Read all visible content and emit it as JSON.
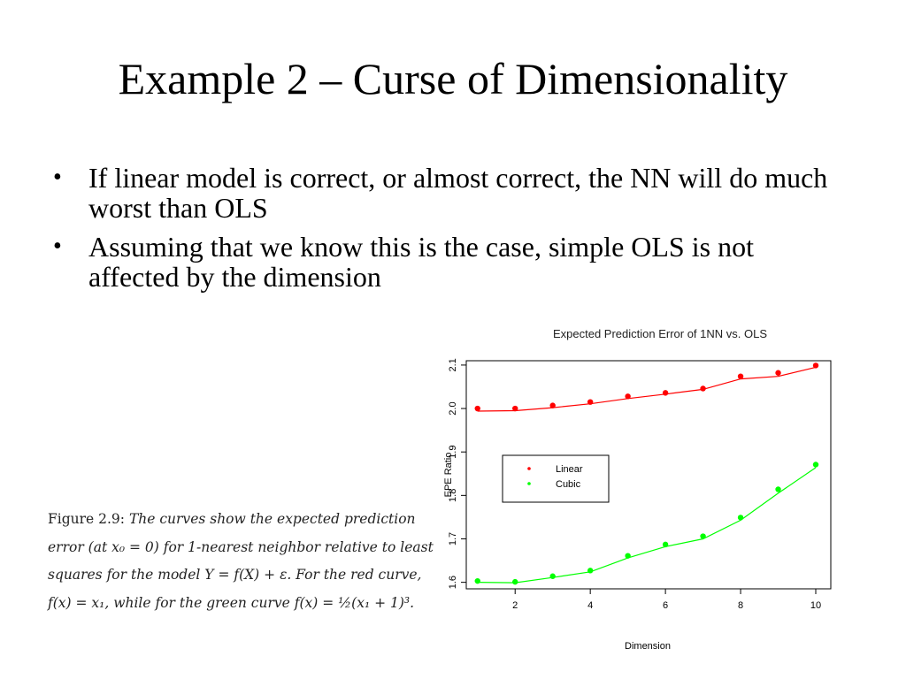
{
  "slide": {
    "title": "Example 2 – Curse of Dimensionality",
    "bullet_glyph": "•",
    "bullets": [
      "If linear model is correct, or almost correct, the NN will do much worst than OLS",
      "Assuming that we know this is the case, simple OLS is not affected by the dimension"
    ]
  },
  "caption": {
    "label": "Figure 2.9:",
    "text": "The curves show the expected prediction error (at x₀ = 0) for 1-nearest neighbor relative to least squares for the model Y = f(X) + ε. For the red curve, f(x) = x₁, while for the green curve f(x) = ½(x₁ + 1)³."
  },
  "chart_data": {
    "type": "scatter",
    "title": "Expected Prediction Error of 1NN vs. OLS",
    "xlabel": "Dimension",
    "ylabel": "EPE Ratio",
    "xlim": [
      0.7,
      10.4
    ],
    "ylim": [
      1.585,
      2.11
    ],
    "x_ticks": [
      2,
      4,
      6,
      8,
      10
    ],
    "y_ticks": [
      1.6,
      1.7,
      1.8,
      1.9,
      2.0,
      2.1
    ],
    "x_tick_labels": [
      "2",
      "4",
      "6",
      "8",
      "10"
    ],
    "y_tick_labels": [
      "1.6",
      "1.7",
      "1.8",
      "1.9",
      "2.0",
      "2.1"
    ],
    "grid": false,
    "legend_position": "middle-left",
    "series": [
      {
        "name": "Linear",
        "color": "#ff0000",
        "x": [
          1,
          2,
          3,
          4,
          5,
          6,
          7,
          8,
          9,
          10
        ],
        "points": [
          2.0,
          2.0,
          2.007,
          2.015,
          2.028,
          2.036,
          2.046,
          2.074,
          2.082,
          2.099
        ],
        "curve": [
          1.994,
          1.995,
          2.002,
          2.011,
          2.023,
          2.033,
          2.044,
          2.068,
          2.074,
          2.095
        ]
      },
      {
        "name": "Cubic",
        "color": "#00ff00",
        "x": [
          1,
          2,
          3,
          4,
          5,
          6,
          7,
          8,
          9,
          10
        ],
        "points": [
          1.603,
          1.601,
          1.614,
          1.627,
          1.661,
          1.687,
          1.706,
          1.749,
          1.814,
          1.871
        ],
        "curve": [
          1.6,
          1.599,
          1.611,
          1.624,
          1.656,
          1.682,
          1.7,
          1.743,
          1.805,
          1.864
        ]
      }
    ]
  }
}
